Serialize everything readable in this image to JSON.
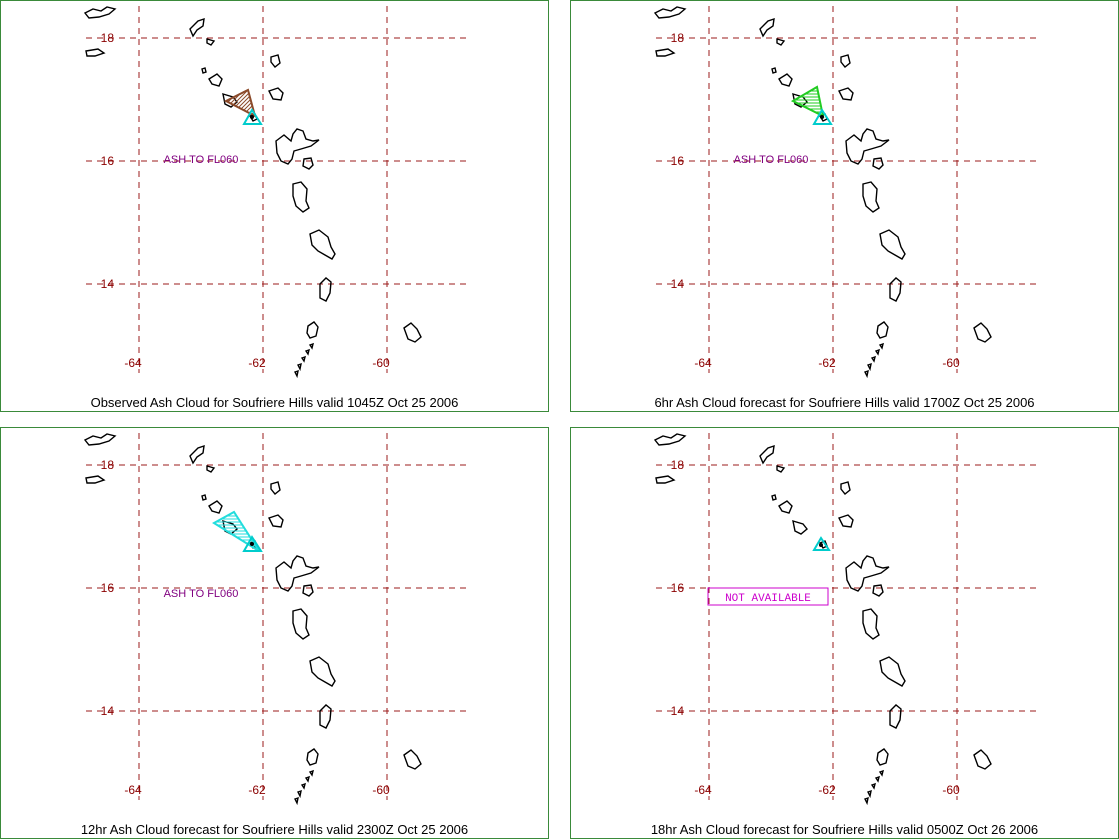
{
  "axes": {
    "lat_labels": [
      "18",
      "16",
      "14"
    ],
    "lon_labels": [
      "-64",
      "-62",
      "-60"
    ]
  },
  "panels": [
    {
      "caption": "Observed Ash Cloud for Soufriere  Hills valid 1045Z Oct 25 2006",
      "annotation": "ASH TO FL060",
      "annotation_boxed": false,
      "ash_color": "#8b4a2a"
    },
    {
      "caption": "6hr Ash Cloud forecast for Soufriere  Hills valid 1700Z Oct 25 2006",
      "annotation": "ASH TO FL060",
      "annotation_boxed": false,
      "ash_color": "#22cc22"
    },
    {
      "caption": "12hr Ash Cloud forecast for Soufriere  Hills valid 2300Z Oct 25 2006",
      "annotation": "ASH TO FL060",
      "annotation_boxed": false,
      "ash_color": "#22dddd"
    },
    {
      "caption": "18hr Ash Cloud forecast for Soufriere  Hills valid 0500Z Oct 26 2006",
      "annotation": "NOT AVAILABLE",
      "annotation_boxed": true,
      "ash_color": ""
    }
  ],
  "colors": {
    "grid": "#9b1b1b",
    "axis_label": "#8b0000",
    "annotation": "#800080",
    "na_annotation": "#cc00cc",
    "vent_marker": "#00cccc",
    "coast": "#000000"
  }
}
